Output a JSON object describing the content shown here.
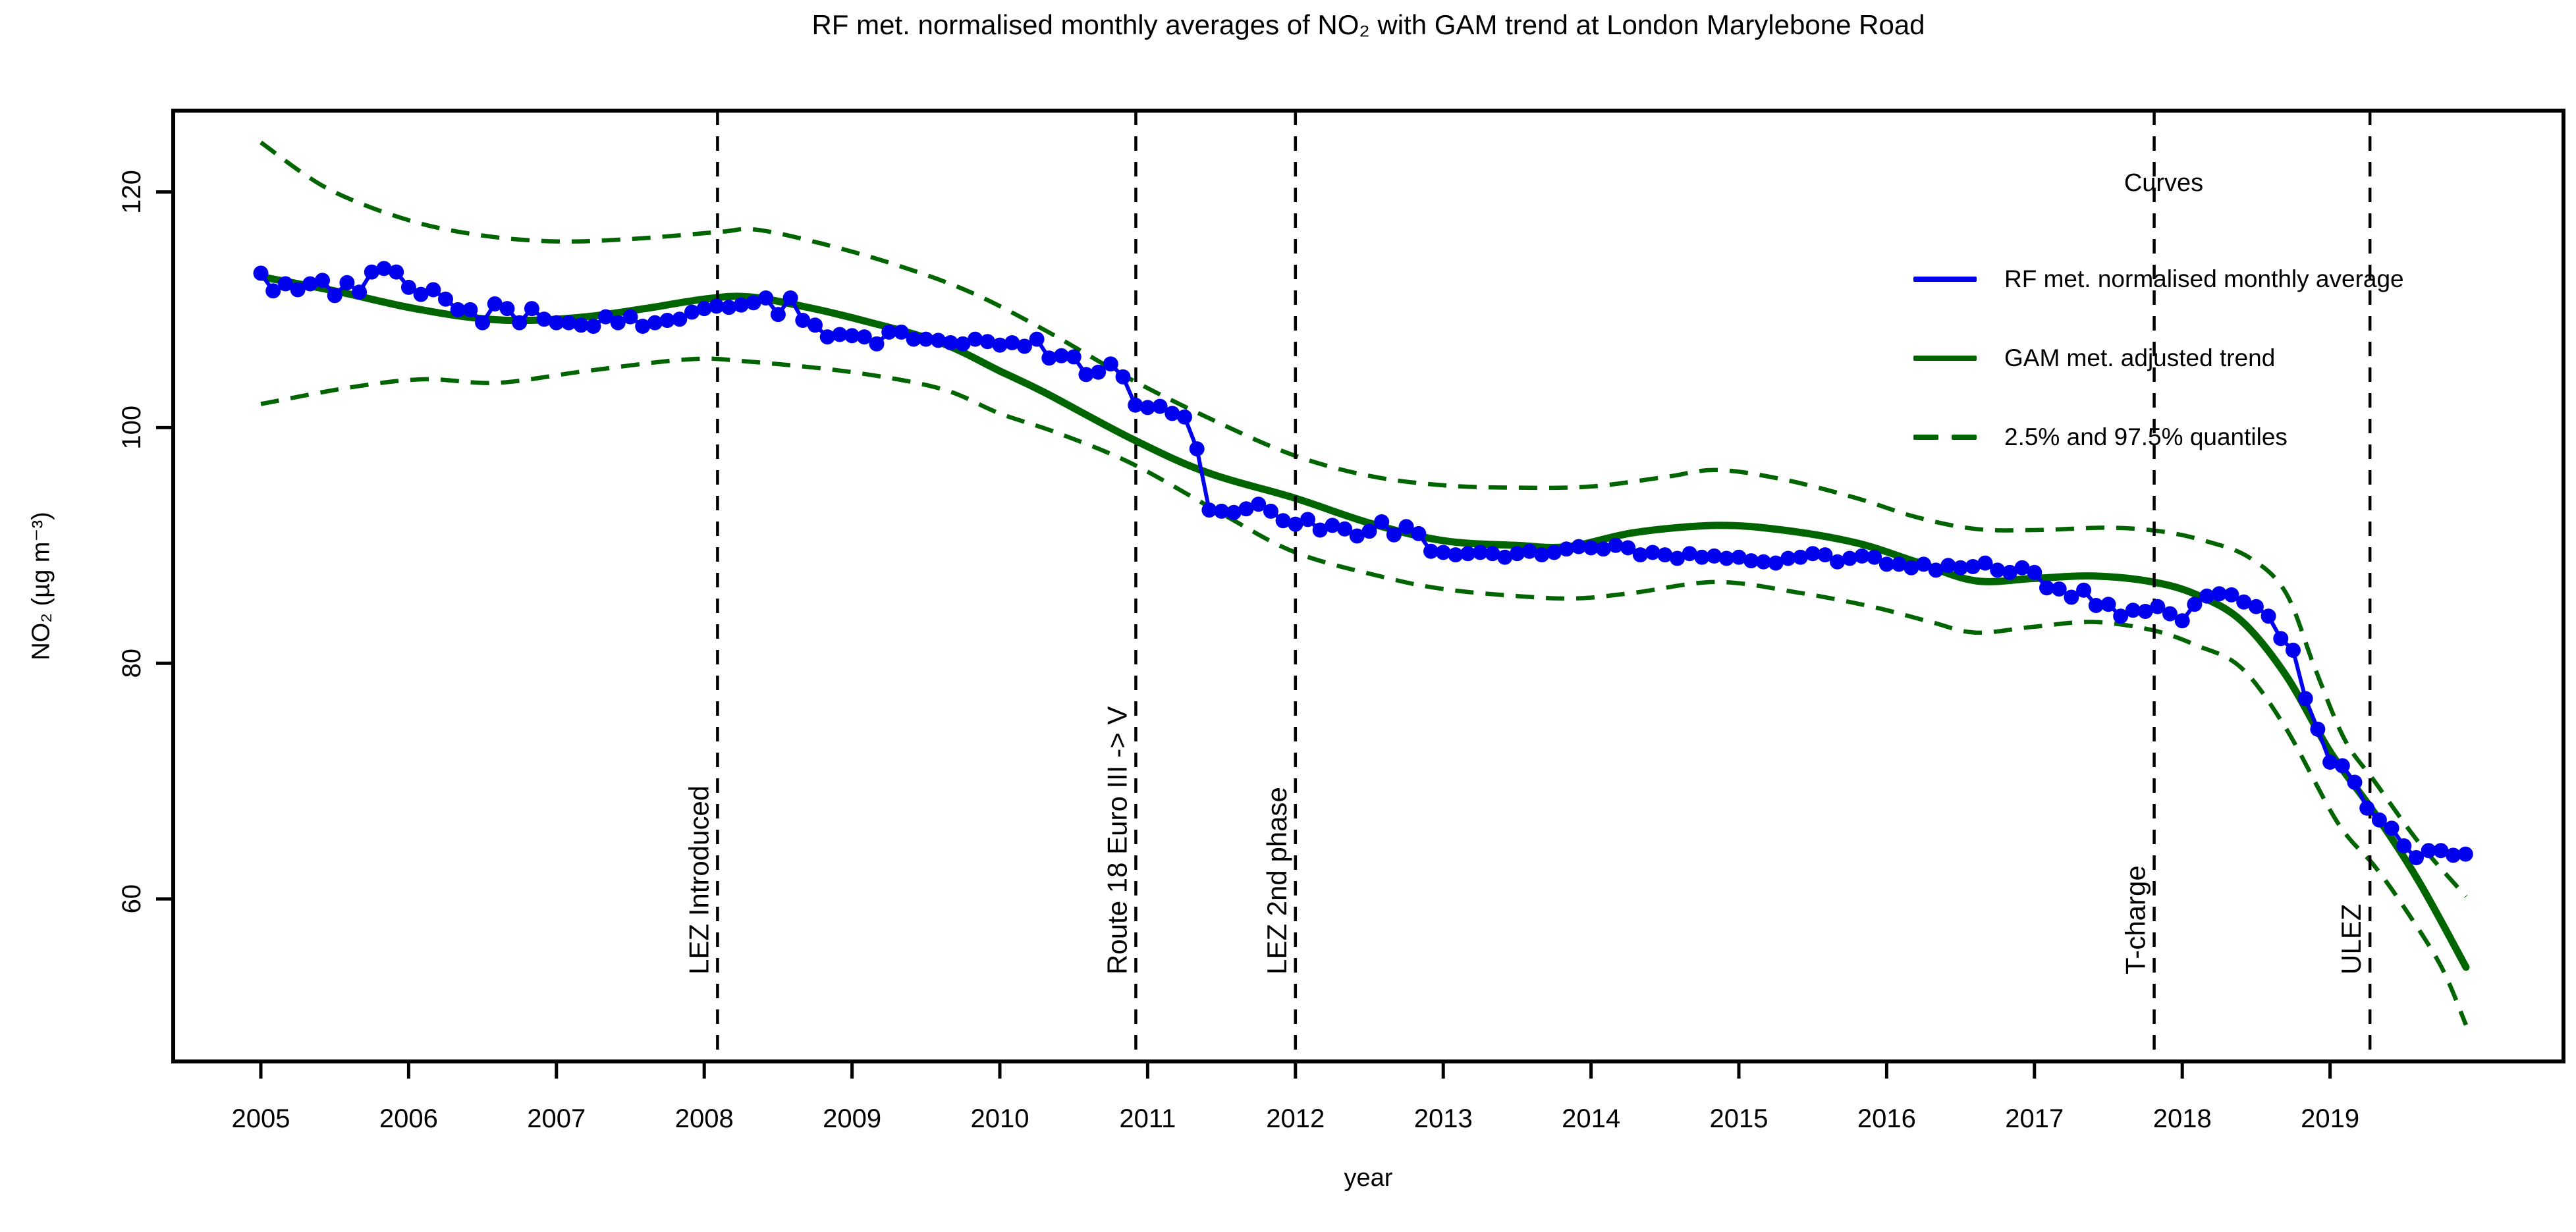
{
  "title": "RF met. normalised monthly averages of NO₂ with GAM trend at London Marylebone Road",
  "axes": {
    "x": {
      "label": "year",
      "ticks": [
        2005,
        2006,
        2007,
        2008,
        2009,
        2010,
        2011,
        2012,
        2013,
        2014,
        2015,
        2016,
        2017,
        2018,
        2019
      ]
    },
    "y": {
      "label": "NO₂ (µg m⁻³)",
      "ticks": [
        60,
        80,
        100,
        120
      ]
    }
  },
  "legend": {
    "title": "Curves",
    "items": [
      {
        "label": "RF met. normalised monthly average",
        "color": "#0000ee",
        "style": "solid"
      },
      {
        "label": "GAM met. adjusted trend",
        "color": "#006400",
        "style": "solid"
      },
      {
        "label": "2.5% and 97.5% quantiles",
        "color": "#006400",
        "style": "dashed"
      }
    ]
  },
  "colors": {
    "points": "#0000ee",
    "trend": "#006400",
    "quantiles": "#006400",
    "events": "#000000",
    "axis": "#000000"
  },
  "chart_data": {
    "type": "line",
    "title": "RF met. normalised monthly averages of NO₂ with GAM trend at London Marylebone Road",
    "xlabel": "year",
    "ylabel": "NO₂ (µg m⁻³)",
    "xlim": [
      2004.39,
      2020.6
    ],
    "ylim": [
      46.3,
      126.9
    ],
    "x_ticks": [
      2005,
      2006,
      2007,
      2008,
      2009,
      2010,
      2011,
      2012,
      2013,
      2014,
      2015,
      2016,
      2017,
      2018,
      2019
    ],
    "y_ticks": [
      60,
      80,
      100,
      120
    ],
    "grid": false,
    "legend_position": "top-right",
    "annotations": [
      {
        "label": "LEZ Introduced",
        "x": 2008.09
      },
      {
        "label": "Route 18 Euro III -> V",
        "x": 2010.92
      },
      {
        "label": "LEZ 2nd phase",
        "x": 2012.0
      },
      {
        "label": "T-charge",
        "x": 2017.81
      },
      {
        "label": "ULEZ",
        "x": 2019.27
      }
    ],
    "series": [
      {
        "name": "RF met. normalised monthly average",
        "type": "points+line",
        "color": "#0000ee",
        "start_year": 2005,
        "monthly_values_by_year": {
          "2005": [
            113.1,
            111.6,
            112.2,
            111.7,
            112.2,
            112.5,
            111.2,
            112.3,
            111.5,
            113.2,
            113.5,
            113.2
          ],
          "2006": [
            111.9,
            111.3,
            111.7,
            110.9,
            110.0,
            110.0,
            108.9,
            110.5,
            110.1,
            108.9,
            110.1,
            109.2
          ],
          "2007": [
            108.9,
            108.9,
            108.7,
            108.6,
            109.4,
            108.9,
            109.4,
            108.6,
            108.9,
            109.1,
            109.2,
            109.8
          ],
          "2008": [
            110.1,
            110.3,
            110.2,
            110.4,
            110.6,
            111.0,
            109.6,
            111.0,
            109.1,
            108.7,
            107.7,
            107.9
          ],
          "2009": [
            107.8,
            107.7,
            107.1,
            108.1,
            108.1,
            107.5,
            107.5,
            107.4,
            107.2,
            107.1,
            107.5,
            107.3
          ],
          "2010": [
            107.0,
            107.2,
            106.9,
            107.5,
            105.9,
            106.1,
            106.0,
            104.5,
            104.7,
            105.4,
            104.3,
            101.9
          ],
          "2011": [
            101.7,
            101.8,
            101.2,
            100.9,
            98.2,
            93.0,
            92.9,
            92.8,
            93.1,
            93.5,
            92.9,
            92.1
          ],
          "2012": [
            91.8,
            92.2,
            91.3,
            91.7,
            91.4,
            90.8,
            91.2,
            92.0,
            90.9,
            91.6,
            91.0,
            89.5
          ],
          "2013": [
            89.4,
            89.2,
            89.3,
            89.4,
            89.3,
            89.0,
            89.3,
            89.5,
            89.2,
            89.4,
            89.7,
            89.9
          ],
          "2014": [
            89.8,
            89.7,
            90.0,
            89.8,
            89.2,
            89.4,
            89.2,
            88.9,
            89.3,
            89.0,
            89.1,
            88.9
          ],
          "2015": [
            89.0,
            88.7,
            88.6,
            88.5,
            88.9,
            89.0,
            89.3,
            89.2,
            88.6,
            88.9,
            89.1,
            89.0
          ],
          "2016": [
            88.4,
            88.4,
            88.1,
            88.4,
            87.9,
            88.3,
            88.1,
            88.2,
            88.5,
            87.9,
            87.7,
            88.1
          ],
          "2017": [
            87.7,
            86.4,
            86.3,
            85.6,
            86.2,
            84.9,
            85.0,
            84.0,
            84.5,
            84.4,
            84.8,
            84.2
          ],
          "2018": [
            83.6,
            85.0,
            85.7,
            85.9,
            85.8,
            85.2,
            84.8,
            84.0,
            82.1,
            81.1,
            77.0,
            74.4
          ],
          "2019": [
            71.6,
            71.3,
            69.9,
            67.7,
            66.7,
            66.0,
            64.5,
            63.5,
            64.1,
            64.1,
            63.7,
            63.8
          ]
        }
      },
      {
        "name": "GAM met. adjusted trend",
        "type": "smooth-line",
        "color": "#006400",
        "points": [
          [
            2005.0,
            112.8
          ],
          [
            2005.5,
            111.6
          ],
          [
            2006.0,
            110.2
          ],
          [
            2006.45,
            109.3
          ],
          [
            2006.8,
            109.1
          ],
          [
            2007.2,
            109.4
          ],
          [
            2007.6,
            110.1
          ],
          [
            2008.0,
            110.9
          ],
          [
            2008.3,
            111.1
          ],
          [
            2008.7,
            110.2
          ],
          [
            2009.1,
            109.0
          ],
          [
            2009.6,
            107.2
          ],
          [
            2010.0,
            104.8
          ],
          [
            2010.3,
            103.0
          ],
          [
            2010.9,
            99.0
          ],
          [
            2011.4,
            96.2
          ],
          [
            2012.0,
            94.0
          ],
          [
            2012.5,
            91.9
          ],
          [
            2013.0,
            90.4
          ],
          [
            2013.5,
            90.0
          ],
          [
            2013.85,
            89.9
          ],
          [
            2014.3,
            91.1
          ],
          [
            2014.85,
            91.7
          ],
          [
            2015.3,
            91.3
          ],
          [
            2015.8,
            90.2
          ],
          [
            2016.2,
            88.6
          ],
          [
            2016.6,
            87.0
          ],
          [
            2017.0,
            87.2
          ],
          [
            2017.4,
            87.4
          ],
          [
            2017.8,
            86.9
          ],
          [
            2018.1,
            85.8
          ],
          [
            2018.4,
            83.6
          ],
          [
            2018.7,
            79.0
          ],
          [
            2019.0,
            72.5
          ],
          [
            2019.3,
            67.3
          ],
          [
            2019.6,
            61.5
          ],
          [
            2019.92,
            54.2
          ]
        ]
      },
      {
        "name": "97.5% quantile",
        "type": "dashed-line",
        "color": "#006400",
        "points": [
          [
            2005.0,
            124.2
          ],
          [
            2005.45,
            120.3
          ],
          [
            2006.0,
            117.6
          ],
          [
            2006.5,
            116.3
          ],
          [
            2007.0,
            115.8
          ],
          [
            2007.5,
            116.0
          ],
          [
            2008.1,
            116.6
          ],
          [
            2008.35,
            116.8
          ],
          [
            2008.8,
            115.6
          ],
          [
            2009.3,
            113.8
          ],
          [
            2009.8,
            111.5
          ],
          [
            2010.3,
            108.3
          ],
          [
            2010.9,
            104.0
          ],
          [
            2011.5,
            100.3
          ],
          [
            2012.0,
            97.6
          ],
          [
            2012.5,
            95.9
          ],
          [
            2013.0,
            95.1
          ],
          [
            2013.5,
            94.9
          ],
          [
            2014.0,
            95.0
          ],
          [
            2014.5,
            95.8
          ],
          [
            2014.85,
            96.4
          ],
          [
            2015.3,
            95.6
          ],
          [
            2015.8,
            94.0
          ],
          [
            2016.2,
            92.4
          ],
          [
            2016.6,
            91.4
          ],
          [
            2017.0,
            91.3
          ],
          [
            2017.5,
            91.5
          ],
          [
            2017.85,
            91.2
          ],
          [
            2018.15,
            90.4
          ],
          [
            2018.45,
            89.0
          ],
          [
            2018.7,
            86.0
          ],
          [
            2018.9,
            79.5
          ],
          [
            2019.1,
            73.5
          ],
          [
            2019.3,
            70.0
          ],
          [
            2019.6,
            64.8
          ],
          [
            2019.92,
            60.2
          ]
        ]
      },
      {
        "name": "2.5% quantile",
        "type": "dashed-line",
        "color": "#006400",
        "points": [
          [
            2005.0,
            102.0
          ],
          [
            2005.6,
            103.4
          ],
          [
            2006.1,
            104.1
          ],
          [
            2006.6,
            103.8
          ],
          [
            2007.2,
            104.8
          ],
          [
            2007.9,
            105.8
          ],
          [
            2008.3,
            105.6
          ],
          [
            2009.0,
            104.7
          ],
          [
            2009.6,
            103.3
          ],
          [
            2010.0,
            101.2
          ],
          [
            2010.4,
            99.5
          ],
          [
            2010.9,
            96.9
          ],
          [
            2011.5,
            92.7
          ],
          [
            2012.0,
            89.4
          ],
          [
            2012.6,
            87.3
          ],
          [
            2013.0,
            86.3
          ],
          [
            2013.5,
            85.7
          ],
          [
            2013.9,
            85.5
          ],
          [
            2014.3,
            86.0
          ],
          [
            2014.85,
            86.9
          ],
          [
            2015.4,
            86.0
          ],
          [
            2015.9,
            84.8
          ],
          [
            2016.3,
            83.5
          ],
          [
            2016.6,
            82.6
          ],
          [
            2017.0,
            83.1
          ],
          [
            2017.4,
            83.5
          ],
          [
            2017.8,
            82.8
          ],
          [
            2018.1,
            81.5
          ],
          [
            2018.4,
            79.6
          ],
          [
            2018.7,
            74.5
          ],
          [
            2019.05,
            66.5
          ],
          [
            2019.3,
            62.8
          ],
          [
            2019.5,
            59.3
          ],
          [
            2019.75,
            54.3
          ],
          [
            2019.92,
            49.3
          ]
        ]
      }
    ]
  }
}
